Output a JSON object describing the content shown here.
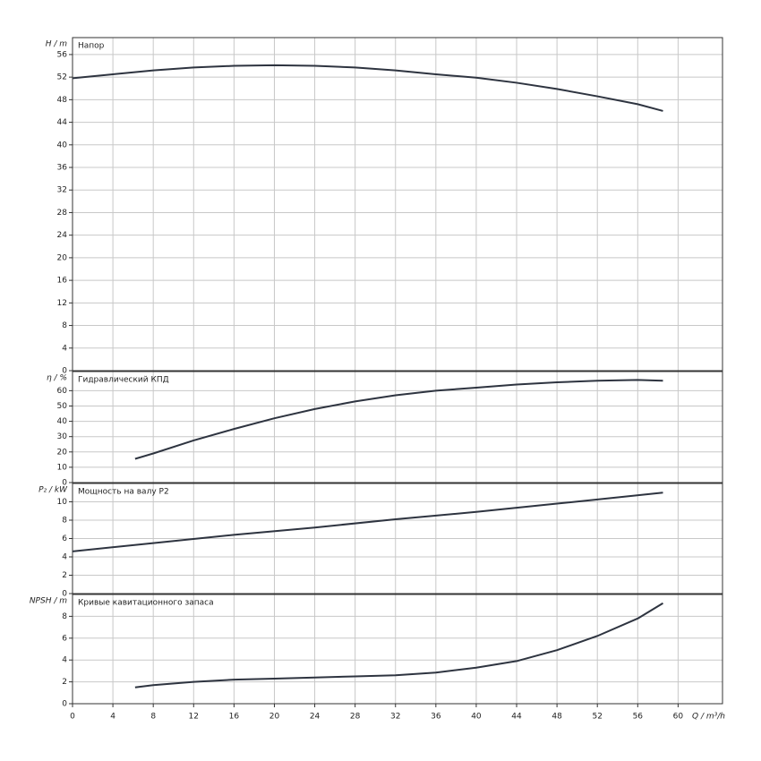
{
  "chart_data": [
    {
      "type": "line",
      "title": "Напор",
      "ylabel": "H / m",
      "x": [
        0,
        4,
        8,
        12,
        16,
        20,
        24,
        28,
        32,
        36,
        40,
        44,
        48,
        52,
        56,
        58.5
      ],
      "values": [
        51.8,
        52.5,
        53.2,
        53.7,
        54,
        54.1,
        54,
        53.7,
        53.2,
        52.5,
        51.9,
        51,
        49.9,
        48.6,
        47.2,
        46
      ],
      "color": "#2e3440",
      "xlim": [
        0,
        64.4
      ],
      "ylim": [
        0,
        59
      ],
      "yticks": [
        0,
        4,
        8,
        12,
        16,
        20,
        24,
        28,
        32,
        36,
        40,
        44,
        48,
        52,
        56
      ],
      "grid": true
    },
    {
      "type": "line",
      "title": "Гидравлический КПД",
      "ylabel": "η / %",
      "x": [
        6.2,
        8,
        12,
        16,
        20,
        24,
        28,
        32,
        36,
        40,
        44,
        48,
        52,
        56,
        58.5
      ],
      "values": [
        15.5,
        19,
        27.5,
        35,
        42,
        48,
        53,
        57,
        60,
        62,
        64,
        65.5,
        66.5,
        67,
        66.5
      ],
      "color": "#2e3440",
      "xlim": [
        0,
        64.4
      ],
      "ylim": [
        0,
        72.5
      ],
      "yticks": [
        0,
        10,
        20,
        30,
        40,
        50,
        60
      ],
      "grid": true
    },
    {
      "type": "line",
      "title": "Мощность на валу P2",
      "ylabel": "P₂ / kW",
      "x": [
        0,
        8,
        16,
        24,
        32,
        40,
        48,
        58.5
      ],
      "values": [
        4.6,
        5.5,
        6.4,
        7.2,
        8.1,
        8.9,
        9.8,
        11
      ],
      "color": "#2e3440",
      "xlim": [
        0,
        64.4
      ],
      "ylim": [
        0,
        12
      ],
      "yticks": [
        0,
        2,
        4,
        6,
        8,
        10
      ],
      "grid": true
    },
    {
      "type": "line",
      "title": "Кривые кавитационного запаса",
      "ylabel": "NPSH / m",
      "xlabel": "Q / m³/h",
      "x": [
        6.2,
        8,
        12,
        16,
        20,
        24,
        28,
        32,
        36,
        40,
        44,
        48,
        52,
        56,
        58.5
      ],
      "values": [
        1.5,
        1.7,
        2,
        2.2,
        2.3,
        2.4,
        2.5,
        2.6,
        2.85,
        3.3,
        3.9,
        4.9,
        6.2,
        7.8,
        9.2
      ],
      "color": "#2e3440",
      "xlim": [
        0,
        64.4
      ],
      "ylim": [
        0,
        10
      ],
      "yticks": [
        0,
        2,
        4,
        6,
        8
      ],
      "xticks": [
        0,
        4,
        8,
        12,
        16,
        20,
        24,
        28,
        32,
        36,
        40,
        44,
        48,
        52,
        56,
        60
      ],
      "grid": true
    }
  ]
}
